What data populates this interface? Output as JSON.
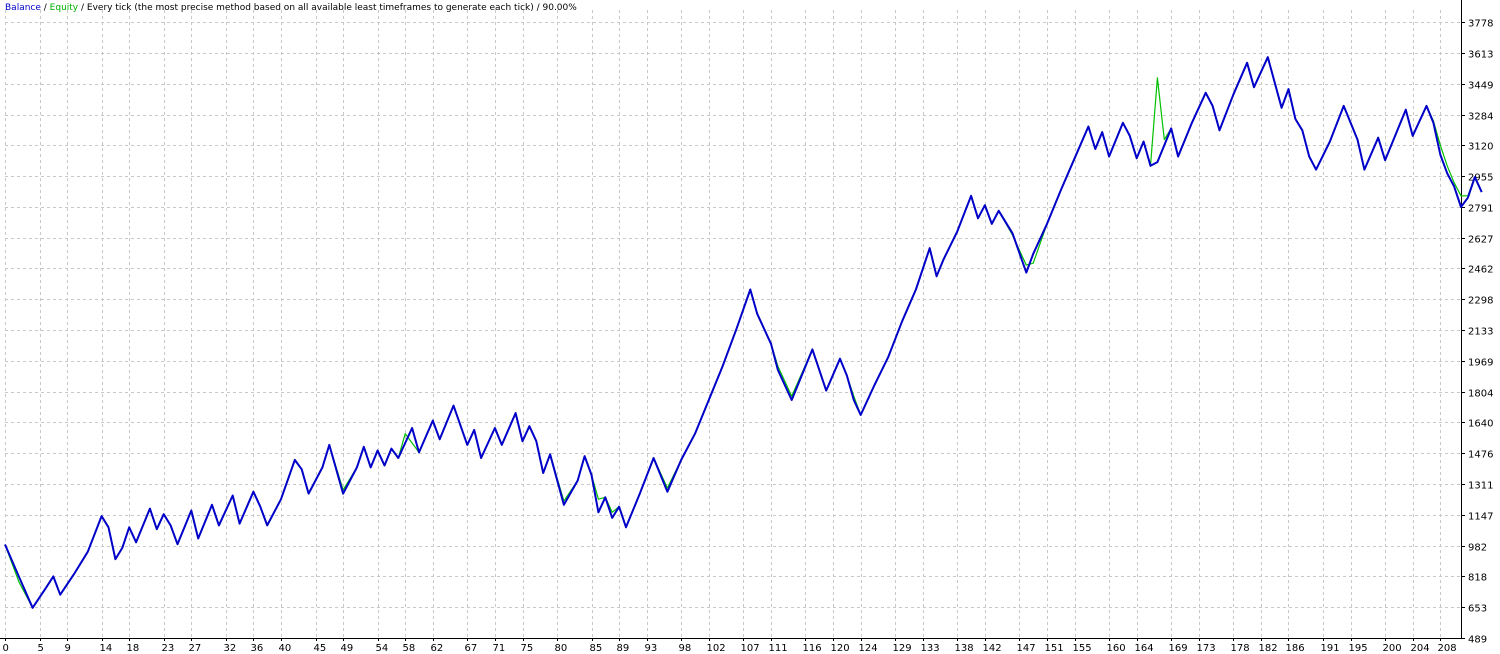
{
  "header": {
    "balance_label": "Balance",
    "sep1": " / ",
    "equity_label": "Equity",
    "rest": " / Every tick (the most precise method based on all available least timeframes to generate each tick) / 90.00%"
  },
  "colors": {
    "balance": "#0000c8",
    "equity": "#00c000",
    "grid": "#c8c8c8",
    "axis": "#000000"
  },
  "chart_data": {
    "type": "line",
    "xlim": [
      0,
      211
    ],
    "ylim": [
      489,
      3778
    ],
    "grid": true,
    "x_ticks": [
      0,
      5,
      9,
      14,
      18,
      23,
      27,
      32,
      36,
      40,
      45,
      49,
      54,
      58,
      62,
      67,
      71,
      75,
      80,
      85,
      89,
      93,
      98,
      102,
      107,
      111,
      116,
      120,
      124,
      129,
      133,
      138,
      142,
      147,
      151,
      155,
      160,
      164,
      169,
      173,
      178,
      182,
      186,
      191,
      195,
      200,
      204,
      208
    ],
    "y_ticks": [
      489,
      653,
      818,
      982,
      1147,
      1311,
      1476,
      1640,
      1804,
      1969,
      2133,
      2298,
      2462,
      2627,
      2791,
      2955,
      3120,
      3284,
      3449,
      3613,
      3778
    ],
    "series": [
      {
        "name": "Balance",
        "points": [
          [
            0,
            988
          ],
          [
            2,
            818
          ],
          [
            4,
            650
          ],
          [
            6,
            760
          ],
          [
            7,
            818
          ],
          [
            8,
            720
          ],
          [
            10,
            830
          ],
          [
            12,
            950
          ],
          [
            14,
            1140
          ],
          [
            15,
            1080
          ],
          [
            16,
            910
          ],
          [
            17,
            970
          ],
          [
            18,
            1080
          ],
          [
            19,
            1000
          ],
          [
            21,
            1180
          ],
          [
            22,
            1070
          ],
          [
            23,
            1150
          ],
          [
            24,
            1090
          ],
          [
            25,
            990
          ],
          [
            27,
            1170
          ],
          [
            28,
            1020
          ],
          [
            30,
            1200
          ],
          [
            31,
            1090
          ],
          [
            33,
            1250
          ],
          [
            34,
            1100
          ],
          [
            36,
            1270
          ],
          [
            37,
            1190
          ],
          [
            38,
            1090
          ],
          [
            40,
            1230
          ],
          [
            42,
            1440
          ],
          [
            43,
            1390
          ],
          [
            44,
            1260
          ],
          [
            46,
            1400
          ],
          [
            47,
            1520
          ],
          [
            49,
            1260
          ],
          [
            51,
            1400
          ],
          [
            52,
            1510
          ],
          [
            53,
            1400
          ],
          [
            54,
            1490
          ],
          [
            55,
            1410
          ],
          [
            56,
            1500
          ],
          [
            57,
            1450
          ],
          [
            59,
            1610
          ],
          [
            60,
            1480
          ],
          [
            62,
            1650
          ],
          [
            63,
            1550
          ],
          [
            65,
            1730
          ],
          [
            67,
            1520
          ],
          [
            68,
            1600
          ],
          [
            69,
            1450
          ],
          [
            71,
            1610
          ],
          [
            72,
            1520
          ],
          [
            74,
            1690
          ],
          [
            75,
            1540
          ],
          [
            76,
            1620
          ],
          [
            77,
            1540
          ],
          [
            78,
            1370
          ],
          [
            79,
            1470
          ],
          [
            81,
            1200
          ],
          [
            83,
            1330
          ],
          [
            84,
            1460
          ],
          [
            85,
            1360
          ],
          [
            86,
            1160
          ],
          [
            87,
            1240
          ],
          [
            88,
            1130
          ],
          [
            89,
            1190
          ],
          [
            90,
            1080
          ],
          [
            92,
            1260
          ],
          [
            94,
            1450
          ],
          [
            96,
            1270
          ],
          [
            98,
            1440
          ],
          [
            100,
            1580
          ],
          [
            102,
            1760
          ],
          [
            104,
            1940
          ],
          [
            106,
            2140
          ],
          [
            108,
            2350
          ],
          [
            109,
            2220
          ],
          [
            111,
            2060
          ],
          [
            112,
            1920
          ],
          [
            114,
            1760
          ],
          [
            117,
            2030
          ],
          [
            119,
            1810
          ],
          [
            121,
            1980
          ],
          [
            122,
            1890
          ],
          [
            123,
            1760
          ],
          [
            124,
            1680
          ],
          [
            126,
            1840
          ],
          [
            128,
            1990
          ],
          [
            130,
            2180
          ],
          [
            132,
            2350
          ],
          [
            134,
            2570
          ],
          [
            135,
            2420
          ],
          [
            136,
            2510
          ],
          [
            138,
            2660
          ],
          [
            140,
            2850
          ],
          [
            141,
            2730
          ],
          [
            142,
            2800
          ],
          [
            143,
            2700
          ],
          [
            144,
            2770
          ],
          [
            146,
            2650
          ],
          [
            148,
            2440
          ],
          [
            149,
            2540
          ],
          [
            151,
            2700
          ],
          [
            153,
            2880
          ],
          [
            155,
            3050
          ],
          [
            157,
            3220
          ],
          [
            158,
            3100
          ],
          [
            159,
            3190
          ],
          [
            160,
            3060
          ],
          [
            162,
            3240
          ],
          [
            163,
            3170
          ],
          [
            164,
            3050
          ],
          [
            165,
            3140
          ],
          [
            166,
            3010
          ],
          [
            167,
            3030
          ],
          [
            169,
            3210
          ],
          [
            170,
            3060
          ],
          [
            172,
            3240
          ],
          [
            174,
            3400
          ],
          [
            175,
            3330
          ],
          [
            176,
            3200
          ],
          [
            178,
            3390
          ],
          [
            180,
            3560
          ],
          [
            181,
            3430
          ],
          [
            183,
            3590
          ],
          [
            185,
            3320
          ],
          [
            186,
            3420
          ],
          [
            187,
            3260
          ],
          [
            188,
            3200
          ],
          [
            189,
            3060
          ],
          [
            190,
            2990
          ],
          [
            192,
            3140
          ],
          [
            194,
            3330
          ],
          [
            196,
            3150
          ],
          [
            197,
            2990
          ],
          [
            199,
            3160
          ],
          [
            200,
            3040
          ],
          [
            203,
            3310
          ],
          [
            204,
            3170
          ],
          [
            206,
            3330
          ],
          [
            207,
            3240
          ],
          [
            208,
            3070
          ],
          [
            209,
            2970
          ],
          [
            210,
            2900
          ],
          [
            211,
            2790
          ],
          [
            212,
            2840
          ],
          [
            213,
            2950
          ],
          [
            214,
            2870
          ]
        ]
      },
      {
        "name": "Equity",
        "points": [
          [
            0,
            988
          ],
          [
            2,
            790
          ],
          [
            4,
            650
          ],
          [
            6,
            760
          ],
          [
            7,
            818
          ],
          [
            8,
            720
          ],
          [
            10,
            830
          ],
          [
            12,
            950
          ],
          [
            14,
            1140
          ],
          [
            15,
            1080
          ],
          [
            16,
            910
          ],
          [
            17,
            970
          ],
          [
            18,
            1080
          ],
          [
            19,
            1000
          ],
          [
            21,
            1180
          ],
          [
            22,
            1070
          ],
          [
            23,
            1150
          ],
          [
            24,
            1090
          ],
          [
            25,
            990
          ],
          [
            27,
            1170
          ],
          [
            28,
            1020
          ],
          [
            30,
            1200
          ],
          [
            31,
            1090
          ],
          [
            33,
            1250
          ],
          [
            34,
            1100
          ],
          [
            36,
            1270
          ],
          [
            37,
            1190
          ],
          [
            38,
            1090
          ],
          [
            40,
            1230
          ],
          [
            42,
            1440
          ],
          [
            43,
            1390
          ],
          [
            44,
            1260
          ],
          [
            46,
            1400
          ],
          [
            47,
            1520
          ],
          [
            49,
            1280
          ],
          [
            51,
            1400
          ],
          [
            52,
            1510
          ],
          [
            53,
            1400
          ],
          [
            54,
            1490
          ],
          [
            55,
            1410
          ],
          [
            56,
            1500
          ],
          [
            57,
            1450
          ],
          [
            58,
            1580
          ],
          [
            59,
            1530
          ],
          [
            60,
            1480
          ],
          [
            62,
            1650
          ],
          [
            63,
            1550
          ],
          [
            65,
            1730
          ],
          [
            67,
            1520
          ],
          [
            68,
            1600
          ],
          [
            69,
            1450
          ],
          [
            71,
            1610
          ],
          [
            72,
            1520
          ],
          [
            74,
            1690
          ],
          [
            75,
            1540
          ],
          [
            76,
            1620
          ],
          [
            77,
            1540
          ],
          [
            78,
            1370
          ],
          [
            79,
            1470
          ],
          [
            81,
            1220
          ],
          [
            83,
            1330
          ],
          [
            84,
            1460
          ],
          [
            85,
            1360
          ],
          [
            86,
            1230
          ],
          [
            87,
            1240
          ],
          [
            88,
            1160
          ],
          [
            89,
            1190
          ],
          [
            90,
            1080
          ],
          [
            92,
            1260
          ],
          [
            94,
            1450
          ],
          [
            96,
            1290
          ],
          [
            98,
            1440
          ],
          [
            100,
            1580
          ],
          [
            102,
            1760
          ],
          [
            104,
            1940
          ],
          [
            106,
            2140
          ],
          [
            108,
            2350
          ],
          [
            109,
            2220
          ],
          [
            111,
            2060
          ],
          [
            112,
            1940
          ],
          [
            114,
            1780
          ],
          [
            117,
            2030
          ],
          [
            119,
            1810
          ],
          [
            121,
            1980
          ],
          [
            122,
            1890
          ],
          [
            123,
            1780
          ],
          [
            124,
            1680
          ],
          [
            126,
            1840
          ],
          [
            128,
            1990
          ],
          [
            130,
            2180
          ],
          [
            132,
            2350
          ],
          [
            134,
            2570
          ],
          [
            135,
            2420
          ],
          [
            136,
            2510
          ],
          [
            138,
            2660
          ],
          [
            140,
            2850
          ],
          [
            141,
            2730
          ],
          [
            142,
            2800
          ],
          [
            143,
            2700
          ],
          [
            144,
            2770
          ],
          [
            146,
            2640
          ],
          [
            148,
            2480
          ],
          [
            149,
            2490
          ],
          [
            151,
            2700
          ],
          [
            153,
            2880
          ],
          [
            155,
            3050
          ],
          [
            157,
            3220
          ],
          [
            158,
            3100
          ],
          [
            159,
            3190
          ],
          [
            160,
            3060
          ],
          [
            162,
            3240
          ],
          [
            163,
            3170
          ],
          [
            164,
            3050
          ],
          [
            165,
            3140
          ],
          [
            166,
            3010
          ],
          [
            167,
            3480
          ],
          [
            168,
            3150
          ],
          [
            169,
            3210
          ],
          [
            170,
            3060
          ],
          [
            172,
            3240
          ],
          [
            174,
            3400
          ],
          [
            175,
            3330
          ],
          [
            176,
            3200
          ],
          [
            178,
            3390
          ],
          [
            180,
            3560
          ],
          [
            181,
            3430
          ],
          [
            183,
            3590
          ],
          [
            185,
            3320
          ],
          [
            186,
            3420
          ],
          [
            187,
            3260
          ],
          [
            188,
            3200
          ],
          [
            189,
            3060
          ],
          [
            190,
            2990
          ],
          [
            192,
            3140
          ],
          [
            194,
            3330
          ],
          [
            196,
            3150
          ],
          [
            197,
            2990
          ],
          [
            199,
            3160
          ],
          [
            200,
            3040
          ],
          [
            203,
            3310
          ],
          [
            204,
            3170
          ],
          [
            206,
            3330
          ],
          [
            207,
            3250
          ],
          [
            208,
            3120
          ],
          [
            209,
            3010
          ],
          [
            210,
            2920
          ],
          [
            211,
            2850
          ],
          [
            212,
            2850
          ],
          [
            213,
            2950
          ],
          [
            214,
            2870
          ]
        ]
      }
    ]
  }
}
